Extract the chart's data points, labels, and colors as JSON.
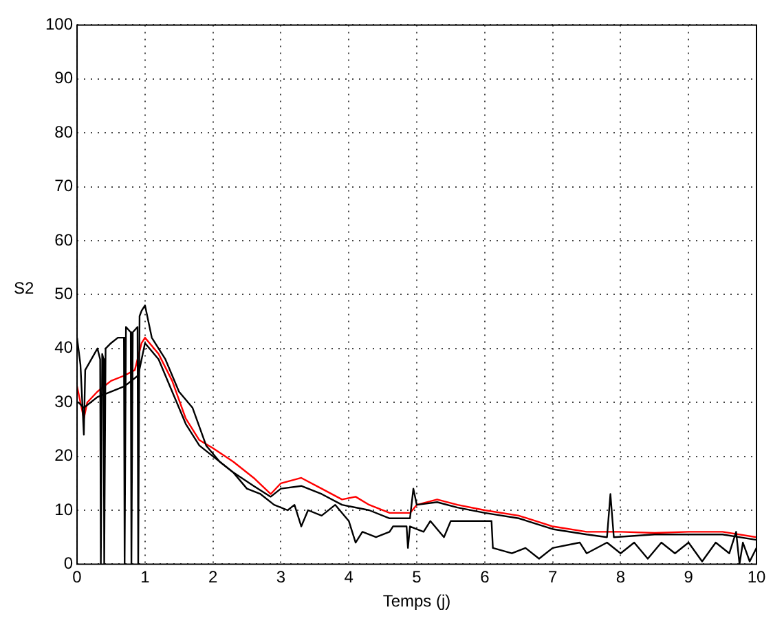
{
  "chart_data": {
    "type": "line",
    "xlabel": "Temps (j)",
    "ylabel": "S2",
    "xlim": [
      0,
      10
    ],
    "ylim": [
      0,
      100
    ],
    "xticks": [
      0,
      1,
      2,
      3,
      4,
      5,
      6,
      7,
      8,
      9,
      10
    ],
    "yticks": [
      0,
      10,
      20,
      30,
      40,
      50,
      60,
      70,
      80,
      90,
      100
    ],
    "grid": true,
    "legend": false,
    "marker": "none",
    "line_style": "solid",
    "series": [
      {
        "color": "#000000",
        "x": [
          0,
          0.05,
          0.1,
          0.12,
          0.3,
          0.34,
          0.35,
          0.37,
          0.39,
          0.4,
          0.42,
          0.5,
          0.6,
          0.69,
          0.7,
          0.72,
          0.79,
          0.8,
          0.82,
          0.89,
          0.9,
          0.92,
          0.95,
          1.0,
          1.1,
          1.3,
          1.5,
          1.7,
          1.9,
          2.1,
          2.3,
          2.5,
          2.7,
          2.9,
          3.1,
          3.2,
          3.3,
          3.4,
          3.6,
          3.8,
          4.0,
          4.1,
          4.2,
          4.4,
          4.6,
          4.65,
          4.85,
          4.87,
          4.9,
          5.1,
          5.2,
          5.4,
          5.5,
          6.1,
          6.12,
          6.4,
          6.6,
          6.8,
          7.0,
          7.4,
          7.5,
          7.8,
          8.0,
          8.2,
          8.4,
          8.6,
          8.8,
          9.0,
          9.2,
          9.4,
          9.6,
          9.7,
          9.75,
          9.8,
          9.9,
          10
        ],
        "values": [
          42,
          37,
          24,
          36,
          40,
          38,
          0,
          39,
          38,
          0,
          40,
          41,
          42,
          42,
          0,
          44,
          43,
          0,
          43,
          44,
          0,
          46,
          47,
          48,
          42,
          38,
          32,
          29,
          22,
          19,
          17,
          14,
          13,
          11,
          10,
          11,
          7,
          10,
          9,
          11,
          8,
          4,
          6,
          5,
          6,
          7,
          7,
          3,
          7,
          6,
          8,
          5,
          8,
          8,
          3,
          2,
          3,
          1,
          3,
          4,
          2,
          4,
          2,
          4,
          1,
          4,
          2,
          4,
          0.5,
          4,
          2,
          6,
          0,
          4,
          0.5,
          3
        ]
      },
      {
        "color": "#000000",
        "x": [
          0,
          0.02,
          0.1,
          0.3,
          0.5,
          0.7,
          0.9,
          1.0,
          1.2,
          1.4,
          1.6,
          1.8,
          2.0,
          2.3,
          2.6,
          2.85,
          3.0,
          3.3,
          3.6,
          3.9,
          4.3,
          4.6,
          4.9,
          4.95,
          5.0,
          5.3,
          5.6,
          6,
          6.5,
          7,
          7.5,
          7.8,
          7.85,
          7.9,
          8.5,
          9,
          9.5,
          10
        ],
        "values": [
          30,
          30,
          29,
          31,
          32,
          33,
          35,
          41,
          38,
          32,
          26,
          22,
          20,
          17,
          14.5,
          12.5,
          14,
          14.5,
          13,
          11,
          10,
          8.5,
          8.5,
          14,
          11,
          11.5,
          10.5,
          9.5,
          8.5,
          6.5,
          5.5,
          5,
          13,
          5,
          5.5,
          5.5,
          5.5,
          4.5
        ]
      },
      {
        "color": "#ff0000",
        "x": [
          0,
          0.05,
          0.1,
          0.15,
          0.3,
          0.5,
          0.7,
          0.85,
          0.95,
          1.0,
          1.2,
          1.4,
          1.6,
          1.8,
          2.0,
          2.3,
          2.6,
          2.85,
          3.0,
          3.3,
          3.6,
          3.9,
          4.1,
          4.3,
          4.6,
          4.9,
          5.0,
          5.3,
          5.6,
          6.0,
          6.5,
          7,
          7.5,
          8,
          8.5,
          9,
          9.5,
          10
        ],
        "values": [
          33,
          30,
          27,
          30,
          32,
          34,
          35,
          36,
          41,
          42,
          39,
          34,
          27,
          23,
          21.5,
          19,
          16,
          13,
          15,
          16,
          14,
          12,
          12.5,
          11,
          9.5,
          9.5,
          11,
          12,
          11,
          10,
          9,
          7,
          6,
          6,
          5.8,
          6,
          6,
          5
        ]
      }
    ]
  }
}
